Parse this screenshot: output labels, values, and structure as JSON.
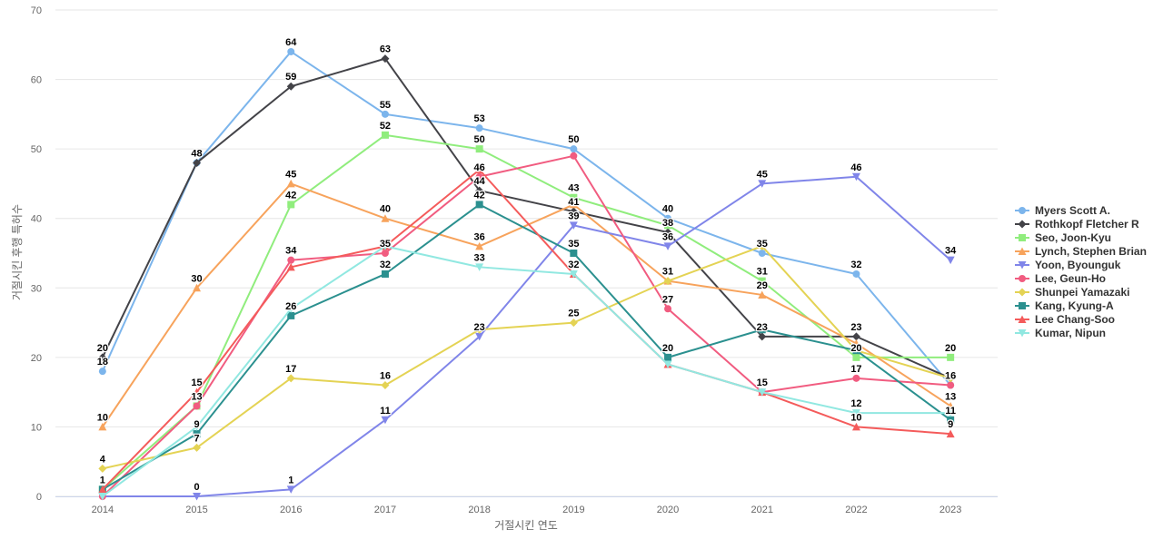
{
  "chart_data": {
    "type": "line",
    "xlabel": "거절시킨 연도",
    "ylabel": "거절시킨 후행 특허수",
    "x": [
      "2014",
      "2015",
      "2016",
      "2017",
      "2018",
      "2019",
      "2020",
      "2021",
      "2022",
      "2023"
    ],
    "ylim": [
      0,
      70
    ],
    "yticks": [
      "0",
      "10",
      "20",
      "30",
      "40",
      "50",
      "60",
      "70"
    ],
    "grid": true,
    "legend_position": "right",
    "series": [
      {
        "name": "Myers Scott A.",
        "color": "#7cb5ec",
        "marker": "circle",
        "values": [
          18,
          48,
          64,
          55,
          53,
          50,
          40,
          35,
          32,
          16
        ]
      },
      {
        "name": "Rothkopf Fletcher R",
        "color": "#434348",
        "marker": "diamond",
        "values": [
          20,
          48,
          59,
          63,
          44,
          41,
          38,
          23,
          23,
          17
        ]
      },
      {
        "name": "Seo, Joon-Kyu",
        "color": "#90ed7d",
        "marker": "square",
        "values": [
          1,
          13,
          42,
          52,
          50,
          43,
          39,
          31,
          20,
          20
        ]
      },
      {
        "name": "Lynch, Stephen Brian",
        "color": "#f7a35c",
        "marker": "triangle",
        "values": [
          10,
          30,
          45,
          40,
          36,
          42,
          31,
          29,
          22,
          13
        ]
      },
      {
        "name": "Yoon, Byounguk",
        "color": "#8085e9",
        "marker": "triangle-down",
        "values": [
          0,
          0,
          1,
          11,
          23,
          39,
          36,
          45,
          46,
          34
        ]
      },
      {
        "name": "Lee, Geun-Ho",
        "color": "#f15c80",
        "marker": "circle",
        "values": [
          0,
          13,
          34,
          35,
          46,
          49,
          27,
          15,
          17,
          16
        ]
      },
      {
        "name": "Shunpei Yamazaki",
        "color": "#e4d354",
        "marker": "diamond",
        "values": [
          4,
          7,
          17,
          16,
          24,
          25,
          31,
          36,
          21,
          17
        ]
      },
      {
        "name": "Kang, Kyung-A",
        "color": "#2b908f",
        "marker": "square",
        "values": [
          1,
          9,
          26,
          32,
          42,
          35,
          20,
          24,
          21,
          11
        ]
      },
      {
        "name": "Lee Chang-Soo",
        "color": "#f45b5b",
        "marker": "triangle",
        "values": [
          1,
          15,
          33,
          36,
          47,
          32,
          19,
          15,
          10,
          9
        ]
      },
      {
        "name": "Kumar, Nipun",
        "color": "#91e8e1",
        "marker": "triangle-down",
        "values": [
          0,
          10,
          27,
          36,
          33,
          32,
          19,
          15,
          12,
          12
        ]
      }
    ],
    "labels": [
      {
        "text": "64",
        "x": 2,
        "y": 64,
        "series": 0
      },
      {
        "text": "63",
        "x": 3,
        "y": 63,
        "series": 1
      },
      {
        "text": "59",
        "x": 2,
        "y": 59,
        "series": 1
      },
      {
        "text": "55",
        "x": 3,
        "y": 55,
        "series": 0
      },
      {
        "text": "53",
        "x": 4,
        "y": 53,
        "series": 0
      },
      {
        "text": "52",
        "x": 3,
        "y": 52,
        "series": 2
      },
      {
        "text": "50",
        "x": 4,
        "y": 50,
        "series": 2
      },
      {
        "text": "50",
        "x": 5,
        "y": 50,
        "series": 0
      },
      {
        "text": "48",
        "x": 1,
        "y": 48,
        "series": 1
      },
      {
        "text": "46",
        "x": 4,
        "y": 46,
        "series": 5
      },
      {
        "text": "46",
        "x": 8,
        "y": 46,
        "series": 4
      },
      {
        "text": "45",
        "x": 2,
        "y": 45,
        "series": 3
      },
      {
        "text": "45",
        "x": 7,
        "y": 45,
        "series": 4
      },
      {
        "text": "44",
        "x": 4,
        "y": 44,
        "series": 1
      },
      {
        "text": "43",
        "x": 5,
        "y": 43,
        "series": 2
      },
      {
        "text": "42",
        "x": 2,
        "y": 42,
        "series": 2
      },
      {
        "text": "42",
        "x": 4,
        "y": 42,
        "series": 7
      },
      {
        "text": "41",
        "x": 5,
        "y": 41,
        "series": 1
      },
      {
        "text": "40",
        "x": 3,
        "y": 40,
        "series": 3
      },
      {
        "text": "40",
        "x": 6,
        "y": 40,
        "series": 0
      },
      {
        "text": "39",
        "x": 5,
        "y": 39,
        "series": 4
      },
      {
        "text": "38",
        "x": 6,
        "y": 38,
        "series": 1
      },
      {
        "text": "36",
        "x": 4,
        "y": 36,
        "series": 3
      },
      {
        "text": "36",
        "x": 6,
        "y": 36,
        "series": 4
      },
      {
        "text": "35",
        "x": 3,
        "y": 35,
        "series": 5
      },
      {
        "text": "35",
        "x": 5,
        "y": 35,
        "series": 7
      },
      {
        "text": "35",
        "x": 7,
        "y": 35,
        "series": 0
      },
      {
        "text": "34",
        "x": 2,
        "y": 34,
        "series": 5
      },
      {
        "text": "34",
        "x": 9,
        "y": 34,
        "series": 4
      },
      {
        "text": "33",
        "x": 4,
        "y": 33,
        "series": 9
      },
      {
        "text": "32",
        "x": 3,
        "y": 32,
        "series": 7
      },
      {
        "text": "32",
        "x": 5,
        "y": 32,
        "series": 8
      },
      {
        "text": "32",
        "x": 8,
        "y": 32,
        "series": 0
      },
      {
        "text": "31",
        "x": 6,
        "y": 31,
        "series": 3
      },
      {
        "text": "31",
        "x": 7,
        "y": 31,
        "series": 2
      },
      {
        "text": "30",
        "x": 1,
        "y": 30,
        "series": 3
      },
      {
        "text": "29",
        "x": 7,
        "y": 29,
        "series": 3
      },
      {
        "text": "27",
        "x": 6,
        "y": 27,
        "series": 5
      },
      {
        "text": "26",
        "x": 2,
        "y": 26,
        "series": 7
      },
      {
        "text": "25",
        "x": 5,
        "y": 25,
        "series": 6
      },
      {
        "text": "23",
        "x": 4,
        "y": 23,
        "series": 6
      },
      {
        "text": "23",
        "x": 7,
        "y": 23,
        "series": 1
      },
      {
        "text": "23",
        "x": 8,
        "y": 23,
        "series": 1
      },
      {
        "text": "20",
        "x": 0,
        "y": 20,
        "series": 1
      },
      {
        "text": "20",
        "x": 6,
        "y": 20,
        "series": 7
      },
      {
        "text": "20",
        "x": 8,
        "y": 20,
        "series": 2
      },
      {
        "text": "20",
        "x": 9,
        "y": 20,
        "series": 2
      },
      {
        "text": "18",
        "x": 0,
        "y": 18,
        "series": 0
      },
      {
        "text": "17",
        "x": 2,
        "y": 17,
        "series": 6
      },
      {
        "text": "17",
        "x": 8,
        "y": 17,
        "series": 5
      },
      {
        "text": "16",
        "x": 3,
        "y": 16,
        "series": 6
      },
      {
        "text": "16",
        "x": 9,
        "y": 16,
        "series": 5
      },
      {
        "text": "15",
        "x": 1,
        "y": 15,
        "series": 8
      },
      {
        "text": "15",
        "x": 7,
        "y": 15,
        "series": 5
      },
      {
        "text": "13",
        "x": 1,
        "y": 13,
        "series": 5
      },
      {
        "text": "13",
        "x": 9,
        "y": 13,
        "series": 3
      },
      {
        "text": "12",
        "x": 8,
        "y": 12,
        "series": 9
      },
      {
        "text": "11",
        "x": 3,
        "y": 11,
        "series": 4
      },
      {
        "text": "11",
        "x": 9,
        "y": 11,
        "series": 7
      },
      {
        "text": "10",
        "x": 0,
        "y": 10,
        "series": 3
      },
      {
        "text": "10",
        "x": 8,
        "y": 10,
        "series": 8
      },
      {
        "text": "9",
        "x": 1,
        "y": 9,
        "series": 7
      },
      {
        "text": "9",
        "x": 9,
        "y": 9,
        "series": 8
      },
      {
        "text": "7",
        "x": 1,
        "y": 7,
        "series": 6
      },
      {
        "text": "4",
        "x": 0,
        "y": 4,
        "series": 6
      },
      {
        "text": "1",
        "x": 0,
        "y": 1,
        "series": 2
      },
      {
        "text": "1",
        "x": 2,
        "y": 1,
        "series": 4
      },
      {
        "text": "0",
        "x": 1,
        "y": 0,
        "series": 4
      }
    ]
  }
}
